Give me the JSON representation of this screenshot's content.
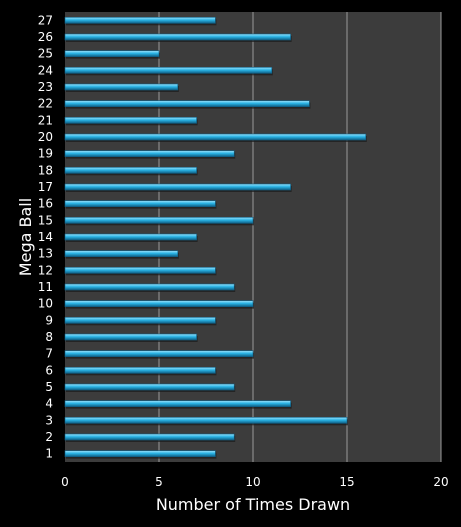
{
  "chart_data": {
    "type": "bar",
    "orientation": "horizontal",
    "xlabel": "Number of Times Drawn",
    "ylabel": "Mega Ball",
    "xlim": [
      0,
      20
    ],
    "xticks": [
      0,
      5,
      10,
      15,
      20
    ],
    "grid": "vertical",
    "categories": [
      "1",
      "2",
      "3",
      "4",
      "5",
      "6",
      "7",
      "8",
      "9",
      "10",
      "11",
      "12",
      "13",
      "14",
      "15",
      "16",
      "17",
      "18",
      "19",
      "20",
      "21",
      "22",
      "23",
      "24",
      "25",
      "26",
      "27"
    ],
    "values": [
      8,
      9,
      15,
      12,
      9,
      8,
      10,
      7,
      8,
      10,
      9,
      8,
      6,
      7,
      10,
      8,
      12,
      7,
      9,
      16,
      7,
      13,
      6,
      11,
      5,
      12,
      8
    ],
    "colors": {
      "background": "#000000",
      "plot_area": "#3c3c3c",
      "bar": "#2ab4e6",
      "bar_highlight": "#9fe3fb",
      "bar_shadow": "#0f5f85",
      "gridline": "#9a9a9a",
      "text": "#ffffff"
    }
  }
}
